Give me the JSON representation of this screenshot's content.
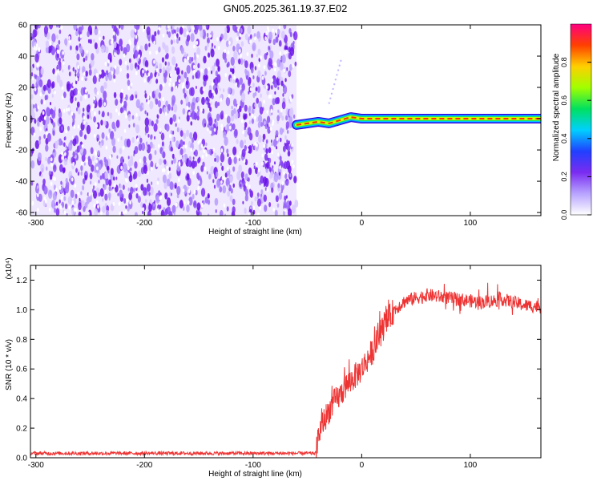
{
  "figure": {
    "title": "GN05.2025.361.19.37.E02"
  },
  "chart_data": [
    {
      "type": "heatmap",
      "xlabel": "Height of straight line (km)",
      "ylabel": "Frequency (Hz)",
      "xlim": [
        -305,
        165
      ],
      "ylim": [
        -62,
        60
      ],
      "xticks": [
        -300,
        -200,
        -100,
        0,
        100
      ],
      "xtick_labels": [
        "-300",
        "-200",
        "-100",
        "0",
        "100"
      ],
      "yticks": [
        -60,
        -40,
        -20,
        0,
        20,
        40,
        60
      ],
      "ytick_labels": [
        "-60",
        "-40",
        "-20",
        "0",
        "20",
        "40",
        "60"
      ],
      "noise_region": {
        "x_range": [
          -305,
          -60
        ],
        "y_range": [
          -62,
          60
        ],
        "color": "#7a2cf0"
      },
      "signal_track": {
        "x": [
          -60,
          -50,
          -40,
          -30,
          -20,
          -10,
          0,
          20,
          40,
          60,
          80,
          100,
          120,
          140,
          165
        ],
        "y": [
          -4,
          -3,
          -2,
          -3,
          -1,
          1,
          0,
          0,
          0,
          0,
          0,
          0,
          0,
          0,
          0
        ]
      },
      "colorbar": {
        "label": "Normalized spectral amplitude",
        "range": [
          0,
          1
        ],
        "ticks": [
          0.0,
          0.2,
          0.4,
          0.6,
          0.8
        ],
        "tick_labels": [
          "0.0",
          "0.2",
          "0.4",
          "0.6",
          "0.8"
        ],
        "colors": [
          "#ffffff",
          "#b8a4ff",
          "#7a2cf0",
          "#2040ff",
          "#00d0ff",
          "#00e060",
          "#a0ff00",
          "#ffd000",
          "#ff4000",
          "#ff0080"
        ]
      },
      "grid": false
    },
    {
      "type": "line",
      "xlabel": "Height of straight line (km)",
      "ylabel": "SNR (10 * v/v)",
      "y_multiplier": "(x10⁴)",
      "xlim": [
        -305,
        165
      ],
      "ylim": [
        0.0,
        1.3
      ],
      "xticks": [
        -300,
        -200,
        -100,
        0,
        100
      ],
      "xtick_labels": [
        "-300",
        "-200",
        "-100",
        "0",
        "100"
      ],
      "yticks": [
        0.0,
        0.2,
        0.4,
        0.6,
        0.8,
        1.0,
        1.2
      ],
      "ytick_labels": [
        "0.0",
        "0.2",
        "0.4",
        "0.6",
        "0.8",
        "1.0",
        "1.2"
      ],
      "color": "#ee3333",
      "series": [
        {
          "x": [
            -305,
            -250,
            -200,
            -150,
            -100,
            -60,
            -42,
            -40,
            -35,
            -30,
            -25,
            -20,
            -15,
            -10,
            -5,
            0,
            10,
            20,
            30,
            40,
            50,
            60,
            70,
            80,
            90,
            100,
            110,
            120,
            130,
            140,
            150,
            165
          ],
          "y": [
            0.03,
            0.03,
            0.03,
            0.03,
            0.03,
            0.03,
            0.03,
            0.15,
            0.25,
            0.32,
            0.38,
            0.42,
            0.48,
            0.52,
            0.56,
            0.6,
            0.72,
            0.88,
            1.0,
            1.06,
            1.08,
            1.1,
            1.09,
            1.08,
            1.07,
            1.06,
            1.05,
            1.06,
            1.07,
            1.05,
            1.03,
            1.02
          ]
        }
      ],
      "grid": false
    }
  ]
}
